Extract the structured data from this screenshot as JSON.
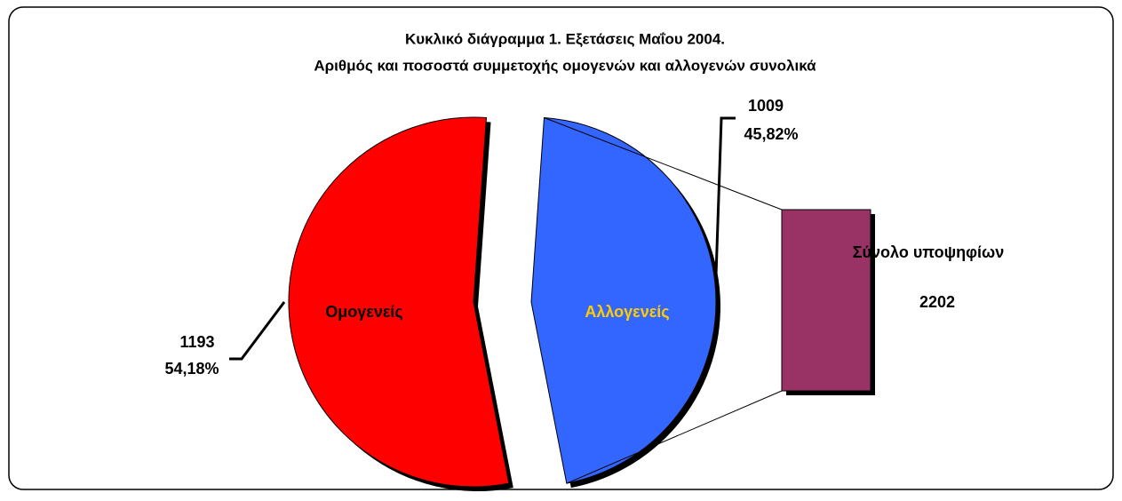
{
  "chart_data": {
    "type": "pie-of-bar",
    "title": [
      "Κυκλικό διάγραμμα 1. Εξετάσεις Μαΐου 2004.",
      "Αριθμός και ποσοστά συμμετοχής ομογενών και αλλογενών συνολικά"
    ],
    "categories": [
      "Ομογενείς",
      "Αλλογενείς"
    ],
    "values": [
      1193,
      1009
    ],
    "percent_labels": [
      "54,18%",
      "45,82%"
    ],
    "colors": [
      "#ff0000",
      "#3366ff"
    ],
    "label_colors": [
      "#000000",
      "#ffcc00"
    ],
    "bar": {
      "label": "Σύνολο υποψηφίων",
      "value": 2202,
      "color": "#993366"
    }
  }
}
